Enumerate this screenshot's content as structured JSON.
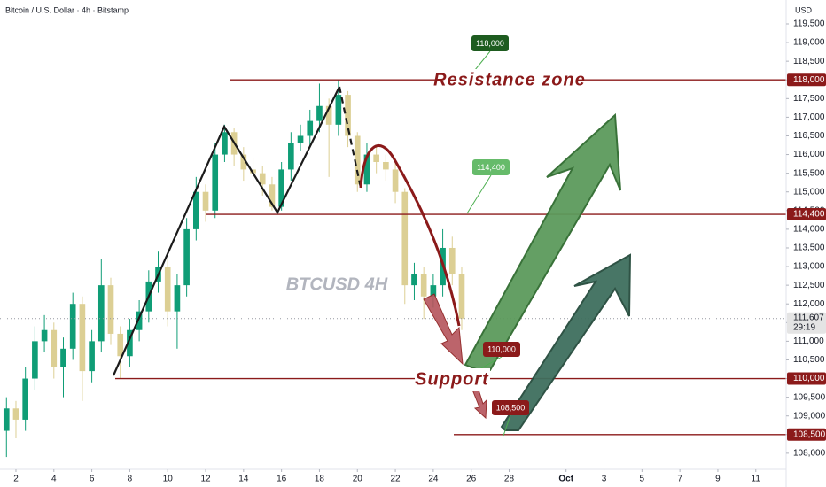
{
  "chart_data": {
    "type": "candlestick",
    "title": "Bitcoin / U.S. Dollar · 4h · Bitstamp",
    "currency": "USD",
    "watermark": "BTCUSD 4H",
    "annotations": {
      "resistance": "Resistance zone",
      "support": "Support"
    },
    "up_color": "#0f9d76",
    "down_color": "#dccf94",
    "x": [
      1.5,
      2,
      2.5,
      3,
      3.5,
      4,
      4.5,
      5,
      5.5,
      6,
      6.5,
      7,
      7.5,
      8,
      8.5,
      9,
      9.5,
      10,
      10.5,
      11,
      11.5,
      12,
      12.5,
      13,
      13.5,
      14,
      14.5,
      15,
      15.5,
      16,
      16.5,
      17,
      17.5,
      18,
      18.5,
      19,
      19.5,
      20,
      20.5,
      21,
      21.5,
      22,
      22.5,
      23,
      23.5,
      24,
      24.5,
      25,
      25.5
    ],
    "open": [
      108600,
      109200,
      108900,
      110000,
      111000,
      111300,
      110300,
      110800,
      112000,
      110200,
      111000,
      112500,
      111200,
      110600,
      111300,
      111800,
      112600,
      113000,
      111800,
      112500,
      114000,
      115000,
      114500,
      116000,
      116600,
      116000,
      115600,
      115500,
      115200,
      114600,
      115600,
      116300,
      116500,
      116900,
      117300,
      116800,
      117600,
      116500,
      115200,
      116000,
      115800,
      115600,
      115000,
      112500,
      112800,
      112200,
      112500,
      113500,
      112800
    ],
    "high": [
      109500,
      109400,
      110300,
      111400,
      111700,
      111500,
      111100,
      112300,
      112200,
      111300,
      113200,
      112700,
      111400,
      111600,
      112100,
      112900,
      113400,
      113200,
      112800,
      114300,
      115400,
      115200,
      116300,
      116800,
      116700,
      116200,
      115900,
      115700,
      115400,
      115800,
      116600,
      116800,
      117200,
      117900,
      117500,
      118000,
      117700,
      116600,
      116300,
      116200,
      116000,
      115800,
      115100,
      113100,
      113000,
      112800,
      114000,
      113800,
      113000
    ],
    "low": [
      107900,
      108400,
      108600,
      109700,
      110700,
      110000,
      109500,
      110500,
      109400,
      109900,
      110700,
      110900,
      110000,
      110300,
      111000,
      111500,
      112300,
      111400,
      110800,
      112200,
      113700,
      114200,
      114300,
      115800,
      115700,
      115300,
      115200,
      114900,
      114500,
      114500,
      115300,
      116100,
      116200,
      116600,
      115400,
      116500,
      116200,
      115000,
      115000,
      115500,
      115300,
      114700,
      112000,
      112100,
      111600,
      111900,
      112200,
      112500,
      111300
    ],
    "close": [
      109200,
      108900,
      110000,
      111000,
      111300,
      110300,
      110800,
      112000,
      110200,
      111000,
      112500,
      111200,
      110600,
      111300,
      111800,
      112600,
      113000,
      111800,
      112500,
      114000,
      115000,
      114500,
      116000,
      116600,
      116000,
      115600,
      115500,
      115200,
      114600,
      115600,
      116300,
      116500,
      116900,
      117300,
      116800,
      117600,
      116500,
      115200,
      116000,
      115800,
      115600,
      115000,
      112500,
      112800,
      112200,
      112500,
      113500,
      112800,
      111607
    ],
    "levels": [
      {
        "value": 118000,
        "label": "118,000"
      },
      {
        "value": 114400,
        "label": "114,400"
      },
      {
        "value": 110000,
        "label": "110,000"
      },
      {
        "value": 108500,
        "label": "108,500"
      }
    ],
    "last_price": {
      "value": 111607,
      "label": "111,607"
    },
    "countdown": "29:19",
    "xlim": [
      1.16,
      42.6
    ],
    "xticks": [
      2,
      4,
      6,
      8,
      10,
      12,
      14,
      16,
      18,
      20,
      22,
      24,
      26,
      28,
      {
        "value": 31,
        "label": "Oct"
      },
      {
        "value": 33,
        "label": "3"
      },
      {
        "value": 35,
        "label": "5"
      },
      {
        "value": 37,
        "label": "7"
      },
      {
        "value": 39,
        "label": "9"
      },
      {
        "value": 41,
        "label": "11"
      }
    ],
    "ylim": [
      107570,
      120140
    ],
    "yticks": [
      {
        "value": 108000,
        "label": "108,000"
      },
      {
        "value": 108500,
        "label": "108,500"
      },
      {
        "value": 109000,
        "label": "109,000"
      },
      {
        "value": 109500,
        "label": "109,500"
      },
      {
        "value": 110000,
        "label": "110,000"
      },
      {
        "value": 110500,
        "label": "110,500"
      },
      {
        "value": 111000,
        "label": "111,000"
      },
      {
        "value": 111500,
        "label": "111,500"
      },
      {
        "value": 112000,
        "label": "112,000"
      },
      {
        "value": 112500,
        "label": "112,500"
      },
      {
        "value": 113000,
        "label": "113,000"
      },
      {
        "value": 113500,
        "label": "113,500"
      },
      {
        "value": 114000,
        "label": "114,000"
      },
      {
        "value": 114500,
        "label": "114,500"
      },
      {
        "value": 115000,
        "label": "115,000"
      },
      {
        "value": 115500,
        "label": "115,500"
      },
      {
        "value": 116000,
        "label": "116,000"
      },
      {
        "value": 116500,
        "label": "116,500"
      },
      {
        "value": 117000,
        "label": "117,000"
      },
      {
        "value": 117500,
        "label": "117,500"
      },
      {
        "value": 118000,
        "label": "118,000"
      },
      {
        "value": 118500,
        "label": "118,500"
      },
      {
        "value": 119000,
        "label": "119,000"
      },
      {
        "value": 119500,
        "label": "119,500"
      }
    ],
    "grid": false
  }
}
